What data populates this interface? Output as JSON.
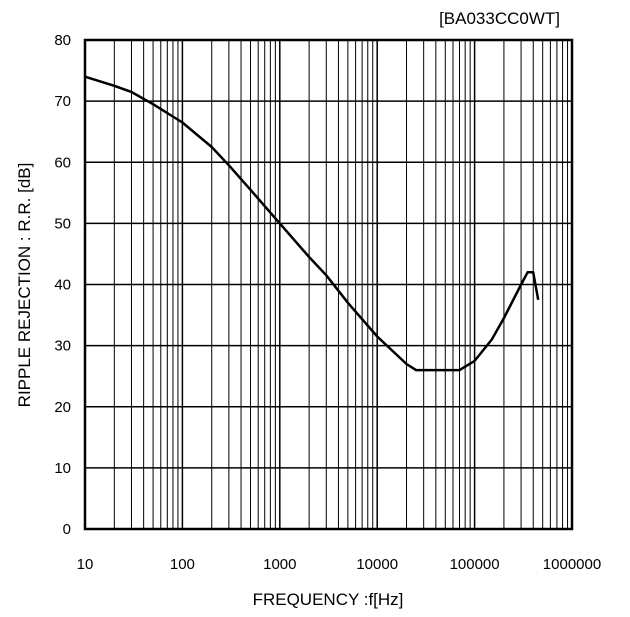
{
  "chart_data": {
    "type": "line",
    "title": "[BA033CC0WT]",
    "xlabel": "FREQUENCY :f[Hz]",
    "ylabel": "RIPPLE REJECTION : R.R. [dB]",
    "x_scale": "log",
    "xlim": [
      10,
      1000000
    ],
    "ylim": [
      0,
      80
    ],
    "x_ticks": [
      10,
      100,
      1000,
      10000,
      100000,
      1000000
    ],
    "x_tick_labels": [
      "10",
      "100",
      "1000",
      "10000",
      "100000",
      "1000000"
    ],
    "y_ticks": [
      0,
      10,
      20,
      30,
      40,
      50,
      60,
      70,
      80
    ],
    "y_tick_labels": [
      "0",
      "10",
      "20",
      "30",
      "40",
      "50",
      "60",
      "70",
      "80"
    ],
    "grid": true,
    "line_color": "#000000",
    "series": [
      {
        "x": [
          10,
          20,
          30,
          50,
          100,
          200,
          300,
          500,
          1000,
          2000,
          3000,
          5000,
          10000,
          20000,
          25000,
          30000,
          50000,
          70000,
          100000,
          150000,
          200000,
          300000,
          350000,
          400000,
          450000
        ],
        "values": [
          74,
          72.5,
          71.5,
          69.5,
          66.5,
          62.5,
          59.5,
          55.5,
          50,
          44.5,
          41.5,
          37,
          31.5,
          27,
          26,
          26,
          26,
          26,
          27.5,
          31,
          34.5,
          40,
          42,
          42,
          37.5
        ]
      }
    ]
  }
}
